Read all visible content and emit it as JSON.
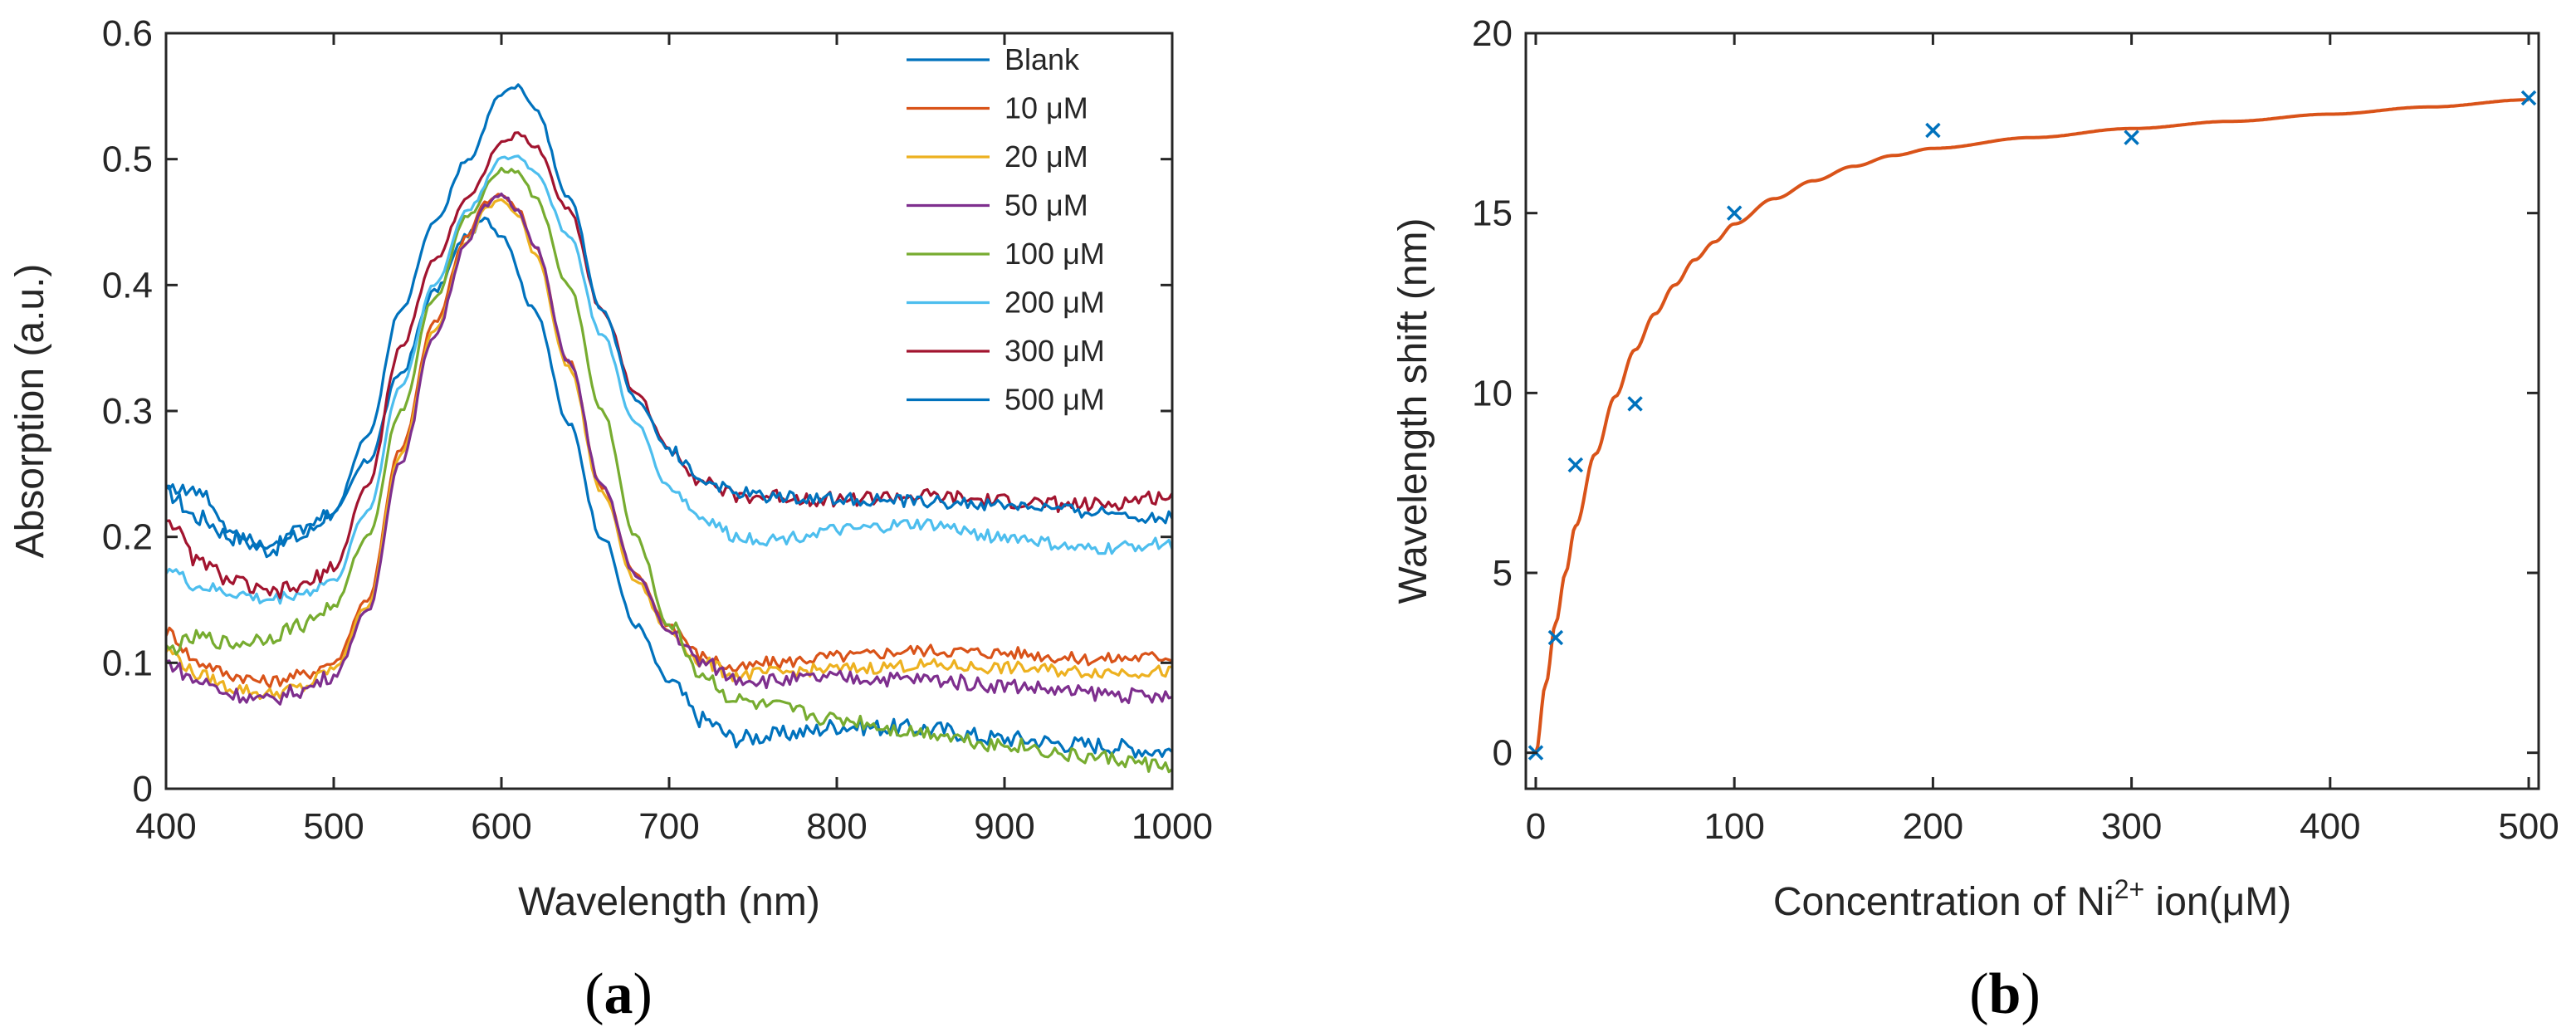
{
  "chart_data": [
    {
      "type": "line",
      "panel_label_open": "(",
      "panel_label_letter": "a",
      "panel_label_close": ")",
      "xlabel": "Wavelength (nm)",
      "ylabel": "Absorption (a.u.)",
      "xlim": [
        400,
        1000
      ],
      "ylim": [
        0,
        0.6
      ],
      "xticks": [
        400,
        500,
        600,
        700,
        800,
        900,
        1000
      ],
      "yticks": [
        0,
        0.1,
        0.2,
        0.3,
        0.4,
        0.5,
        0.6
      ],
      "xtick_labels": [
        "400",
        "500",
        "600",
        "700",
        "800",
        "900",
        "1000"
      ],
      "ytick_labels": [
        "0",
        "0.1",
        "0.2",
        "0.3",
        "0.4",
        "0.5",
        "0.6"
      ],
      "grid": false,
      "legend_position": "top-right",
      "series": [
        {
          "name": "Blank",
          "color": "#0072BD",
          "noise": 0.007,
          "x": [
            400,
            420,
            440,
            460,
            480,
            500,
            520,
            540,
            560,
            580,
            590,
            600,
            620,
            640,
            660,
            680,
            700,
            720,
            740,
            760,
            780,
            800,
            850,
            900,
            950,
            1000
          ],
          "y": [
            0.235,
            0.215,
            0.2,
            0.19,
            0.2,
            0.22,
            0.26,
            0.33,
            0.395,
            0.44,
            0.452,
            0.44,
            0.38,
            0.29,
            0.2,
            0.13,
            0.085,
            0.055,
            0.04,
            0.042,
            0.045,
            0.05,
            0.048,
            0.04,
            0.035,
            0.03
          ]
        },
        {
          "name": "10 μM",
          "color": "#D95319",
          "noise": 0.005,
          "x": [
            400,
            420,
            440,
            460,
            480,
            500,
            520,
            540,
            560,
            580,
            590,
            600,
            610,
            620,
            640,
            660,
            680,
            700,
            720,
            740,
            760,
            800,
            850,
            900,
            950,
            1000
          ],
          "y": [
            0.125,
            0.1,
            0.09,
            0.085,
            0.09,
            0.1,
            0.15,
            0.27,
            0.37,
            0.44,
            0.465,
            0.472,
            0.46,
            0.43,
            0.34,
            0.24,
            0.17,
            0.13,
            0.105,
            0.095,
            0.1,
            0.105,
            0.11,
            0.108,
            0.103,
            0.105
          ]
        },
        {
          "name": "20 μM",
          "color": "#EDB120",
          "noise": 0.005,
          "x": [
            400,
            420,
            440,
            460,
            480,
            500,
            520,
            540,
            560,
            580,
            590,
            600,
            610,
            620,
            640,
            660,
            680,
            700,
            720,
            740,
            760,
            800,
            850,
            900,
            950,
            1000
          ],
          "y": [
            0.11,
            0.09,
            0.08,
            0.075,
            0.08,
            0.095,
            0.145,
            0.265,
            0.365,
            0.435,
            0.46,
            0.468,
            0.455,
            0.425,
            0.335,
            0.235,
            0.165,
            0.125,
            0.1,
            0.09,
            0.092,
            0.095,
            0.098,
            0.096,
            0.093,
            0.093
          ]
        },
        {
          "name": "50 μM",
          "color": "#7E2F8E",
          "noise": 0.006,
          "x": [
            400,
            420,
            440,
            460,
            480,
            500,
            520,
            540,
            560,
            580,
            590,
            600,
            610,
            620,
            640,
            660,
            680,
            700,
            720,
            740,
            760,
            800,
            850,
            900,
            950,
            1000
          ],
          "y": [
            0.1,
            0.085,
            0.075,
            0.07,
            0.078,
            0.09,
            0.14,
            0.26,
            0.36,
            0.435,
            0.462,
            0.472,
            0.46,
            0.43,
            0.34,
            0.24,
            0.17,
            0.125,
            0.1,
            0.088,
            0.086,
            0.088,
            0.087,
            0.082,
            0.076,
            0.072
          ]
        },
        {
          "name": "100 μM",
          "color": "#77AC30",
          "noise": 0.006,
          "x": [
            400,
            420,
            440,
            460,
            480,
            500,
            520,
            540,
            560,
            580,
            600,
            610,
            620,
            640,
            660,
            680,
            700,
            720,
            740,
            760,
            800,
            850,
            900,
            950,
            1000
          ],
          "y": [
            0.11,
            0.12,
            0.115,
            0.12,
            0.13,
            0.145,
            0.2,
            0.3,
            0.39,
            0.455,
            0.492,
            0.49,
            0.47,
            0.4,
            0.3,
            0.2,
            0.13,
            0.09,
            0.07,
            0.065,
            0.055,
            0.045,
            0.035,
            0.025,
            0.018
          ]
        },
        {
          "name": "200 μM",
          "color": "#4DBEEE",
          "noise": 0.005,
          "x": [
            400,
            420,
            440,
            460,
            480,
            500,
            520,
            540,
            560,
            580,
            600,
            610,
            620,
            640,
            660,
            680,
            700,
            720,
            740,
            760,
            800,
            850,
            900,
            950,
            1000
          ],
          "y": [
            0.175,
            0.16,
            0.155,
            0.15,
            0.155,
            0.165,
            0.22,
            0.32,
            0.4,
            0.46,
            0.5,
            0.502,
            0.49,
            0.44,
            0.36,
            0.29,
            0.24,
            0.215,
            0.2,
            0.198,
            0.205,
            0.21,
            0.2,
            0.19,
            0.195
          ]
        },
        {
          "name": "300 μM",
          "color": "#A2142F",
          "noise": 0.006,
          "x": [
            400,
            420,
            440,
            460,
            480,
            500,
            520,
            540,
            560,
            580,
            600,
            610,
            620,
            640,
            660,
            680,
            700,
            720,
            740,
            760,
            800,
            850,
            900,
            950,
            1000
          ],
          "y": [
            0.215,
            0.18,
            0.165,
            0.155,
            0.16,
            0.175,
            0.24,
            0.35,
            0.42,
            0.47,
            0.512,
            0.52,
            0.51,
            0.46,
            0.38,
            0.315,
            0.27,
            0.245,
            0.232,
            0.232,
            0.23,
            0.232,
            0.228,
            0.225,
            0.232
          ]
        },
        {
          "name": "500 μM",
          "color": "#0072BD",
          "noise": 0.005,
          "x": [
            400,
            420,
            440,
            460,
            480,
            500,
            520,
            540,
            560,
            580,
            600,
            610,
            620,
            640,
            660,
            680,
            700,
            720,
            740,
            760,
            800,
            850,
            900,
            950,
            1000
          ],
          "y": [
            0.24,
            0.235,
            0.205,
            0.195,
            0.205,
            0.22,
            0.28,
            0.38,
            0.45,
            0.5,
            0.552,
            0.558,
            0.54,
            0.47,
            0.38,
            0.31,
            0.27,
            0.245,
            0.235,
            0.232,
            0.23,
            0.228,
            0.225,
            0.22,
            0.215
          ]
        }
      ]
    },
    {
      "type": "scatter",
      "panel_label_open": "(",
      "panel_label_letter": "b",
      "panel_label_close": ")",
      "xlabel_prefix": "Concentration of Ni",
      "xlabel_superscript": "2+",
      "xlabel_suffix": " ion(μM)",
      "ylabel": "Wavelength shift (nm)",
      "xlim": [
        -5,
        505
      ],
      "ylim": [
        -1,
        20
      ],
      "xticks": [
        0,
        100,
        200,
        300,
        400,
        500
      ],
      "yticks": [
        0,
        5,
        10,
        15,
        20
      ],
      "xtick_labels": [
        "0",
        "100",
        "200",
        "300",
        "400",
        "500"
      ],
      "ytick_labels": [
        "0",
        "5",
        "10",
        "15",
        "20"
      ],
      "grid": false,
      "points": {
        "color": "#0072BD",
        "marker": "x",
        "x": [
          0,
          10,
          20,
          50,
          100,
          200,
          300,
          500
        ],
        "y": [
          0,
          3.2,
          8.0,
          9.7,
          15.0,
          17.3,
          17.1,
          18.2
        ]
      },
      "fit_curve": {
        "color": "#D95319",
        "x": [
          0,
          5,
          10,
          15,
          20,
          30,
          40,
          50,
          60,
          70,
          80,
          90,
          100,
          120,
          140,
          160,
          180,
          200,
          250,
          300,
          350,
          400,
          450,
          500
        ],
        "y": [
          0,
          1.9,
          3.6,
          5.0,
          6.3,
          8.3,
          9.9,
          11.2,
          12.2,
          13.0,
          13.7,
          14.2,
          14.7,
          15.4,
          15.9,
          16.3,
          16.6,
          16.8,
          17.1,
          17.35,
          17.55,
          17.75,
          17.95,
          18.15
        ]
      }
    }
  ]
}
